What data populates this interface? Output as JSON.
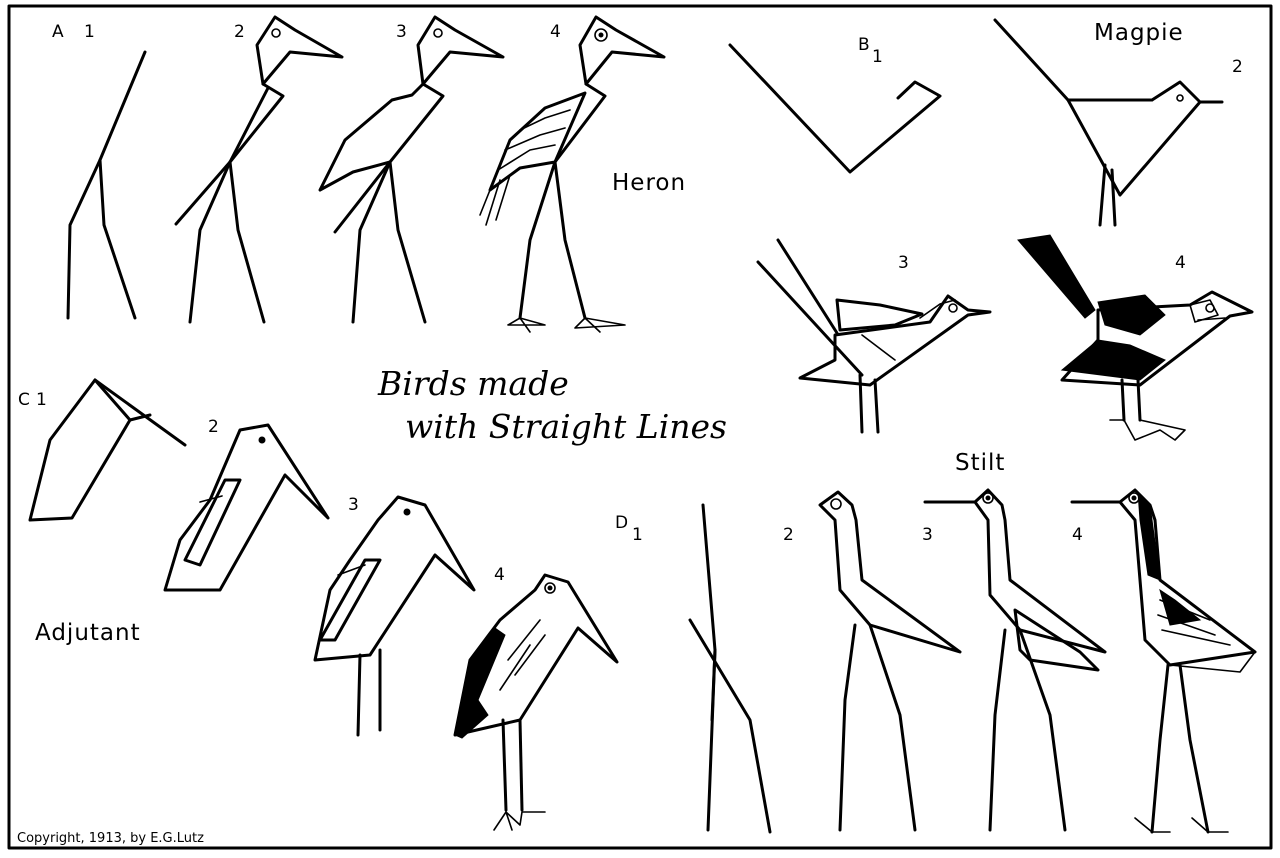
{
  "plate": {
    "title_line1": "Birds made",
    "title_line2": "with Straight Lines",
    "copyright": "Copyright, 1913, by E.G.Lutz"
  },
  "sections": {
    "heron": {
      "letter": "A",
      "name": "Heron",
      "steps": [
        "1",
        "2",
        "3",
        "4"
      ]
    },
    "magpie": {
      "letter": "B",
      "name": "Magpie",
      "steps": [
        "1",
        "2",
        "3",
        "4"
      ]
    },
    "adjutant": {
      "letter": "C",
      "name": "Adjutant",
      "steps": [
        "1",
        "2",
        "3",
        "4"
      ]
    },
    "stilt": {
      "letter": "D",
      "name": "Stilt",
      "steps": [
        "1",
        "2",
        "3",
        "4"
      ]
    }
  }
}
